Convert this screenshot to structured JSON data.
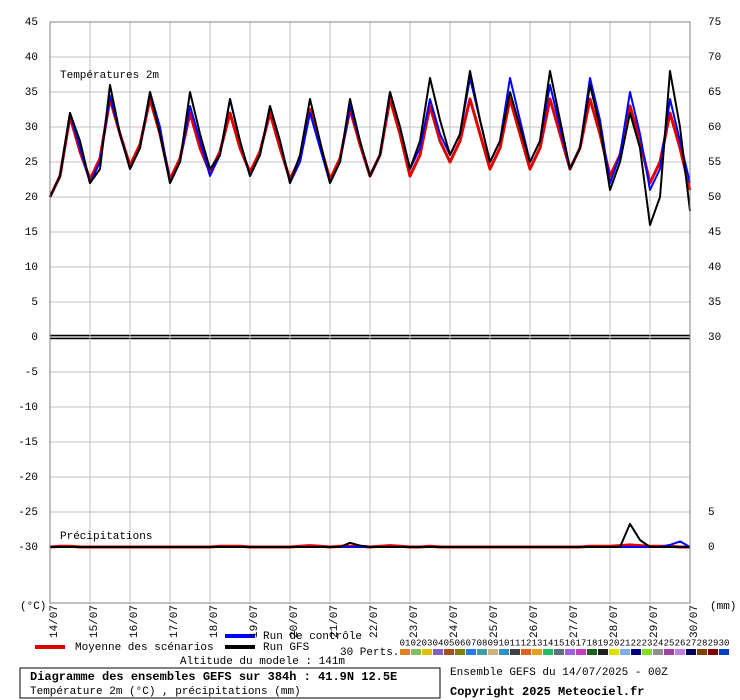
{
  "chart_data": {
    "type": "line",
    "title": "Diagramme des ensembles GEFS sur 384h : 41.9N 12.5E",
    "subtitle": "Température 2m (°C) , précipitations (mm)",
    "run_info": "Ensemble GEFS du 14/07/2025 - 00Z",
    "copyright": "Copyright 2025 Meteociel.fr",
    "altitude": "Altitude du modele : 141m",
    "temp_label": "Températures 2m",
    "precip_label": "Précipitations",
    "y_unit": "(°C)",
    "y2_unit": "(mm)",
    "grid": true,
    "xlim": [
      0,
      384
    ],
    "ylim": [
      -38,
      45
    ],
    "y2lim": [
      -8,
      75
    ],
    "yticks": [
      -30,
      -25,
      -20,
      -15,
      -10,
      -5,
      0,
      5,
      10,
      15,
      20,
      25,
      30,
      35,
      40,
      45
    ],
    "y2ticks": [
      0,
      5,
      30,
      35,
      40,
      45,
      50,
      55,
      60,
      65,
      70,
      75
    ],
    "xticks": [
      {
        "value": 0,
        "label": "14/07"
      },
      {
        "value": 24,
        "label": "15/07"
      },
      {
        "value": 48,
        "label": "16/07"
      },
      {
        "value": 72,
        "label": "17/07"
      },
      {
        "value": 96,
        "label": "18/07"
      },
      {
        "value": 120,
        "label": "19/07"
      },
      {
        "value": 144,
        "label": "20/07"
      },
      {
        "value": 168,
        "label": "21/07"
      },
      {
        "value": 192,
        "label": "22/07"
      },
      {
        "value": 216,
        "label": "23/07"
      },
      {
        "value": 240,
        "label": "24/07"
      },
      {
        "value": 264,
        "label": "25/07"
      },
      {
        "value": 288,
        "label": "26/07"
      },
      {
        "value": 312,
        "label": "27/07"
      },
      {
        "value": 336,
        "label": "28/07"
      },
      {
        "value": 360,
        "label": "29/07"
      },
      {
        "value": 384,
        "label": "30/07"
      }
    ],
    "x": [
      0,
      6,
      12,
      18,
      24,
      30,
      36,
      42,
      48,
      54,
      60,
      66,
      72,
      78,
      84,
      90,
      96,
      102,
      108,
      114,
      120,
      126,
      132,
      138,
      144,
      150,
      156,
      162,
      168,
      174,
      180,
      186,
      192,
      198,
      204,
      210,
      216,
      222,
      228,
      234,
      240,
      246,
      252,
      258,
      264,
      270,
      276,
      282,
      288,
      294,
      300,
      306,
      312,
      318,
      324,
      330,
      336,
      342,
      348,
      354,
      360,
      366,
      372,
      378,
      384
    ],
    "series": [
      {
        "name": "Moyenne des scénarios",
        "color": "#e00000",
        "values": [
          20,
          23,
          31.5,
          26.5,
          22.5,
          25.5,
          34,
          29,
          24.5,
          27.5,
          34,
          29,
          22.5,
          25.5,
          32,
          27,
          23.5,
          26.5,
          32,
          27,
          23.5,
          26.5,
          32,
          27,
          22.5,
          25.5,
          32.5,
          27.5,
          22.5,
          25.5,
          32.5,
          27.5,
          23,
          26,
          34,
          29,
          23,
          26,
          33,
          28,
          25,
          28,
          34,
          29,
          24,
          27,
          34,
          29,
          24,
          27,
          34,
          29,
          24,
          27,
          34,
          29,
          23,
          26,
          33,
          28,
          22,
          25,
          32,
          27,
          21
        ]
      },
      {
        "name": "Run de contrôle",
        "color": "#0000ff",
        "values": [
          20,
          23,
          32,
          27,
          22,
          25,
          34.5,
          29,
          24,
          27,
          35,
          30,
          22,
          25,
          33,
          28,
          23,
          26,
          34,
          28,
          23,
          26,
          33,
          28,
          22,
          25,
          32,
          27,
          22,
          25,
          33,
          28,
          23,
          26,
          35,
          30,
          24,
          27,
          34,
          29,
          26,
          29,
          37,
          31,
          25,
          28,
          37,
          31,
          25,
          28,
          36,
          30,
          24,
          27,
          37,
          31,
          22,
          26,
          35,
          29,
          21,
          24,
          34,
          28,
          22
        ]
      },
      {
        "name": "Run GFS",
        "color": "#000000",
        "values": [
          20,
          23,
          32,
          28,
          22,
          24,
          36,
          29,
          24,
          27,
          35,
          29,
          22,
          25,
          35,
          29,
          24,
          26,
          34,
          28,
          23,
          26,
          33,
          28,
          22,
          26,
          34,
          28,
          22,
          25,
          34,
          28,
          23,
          26,
          35,
          30,
          24,
          28,
          37,
          31,
          26,
          29,
          38,
          31,
          25,
          28,
          35,
          30,
          25,
          28,
          38,
          31,
          24,
          27,
          36,
          30,
          21,
          25,
          32,
          27,
          16,
          20,
          38,
          30,
          18
        ]
      }
    ],
    "precipitation": [
      {
        "color": "#e00000",
        "axis": "y2",
        "values": [
          0,
          0.1,
          0.1,
          0,
          0,
          0,
          0,
          0,
          0,
          0,
          0,
          0,
          0,
          0,
          0,
          0,
          0,
          0.1,
          0.1,
          0.1,
          0,
          0,
          0,
          0,
          0,
          0.1,
          0.2,
          0.1,
          0,
          0.1,
          0.1,
          0.1,
          0,
          0.1,
          0.2,
          0.1,
          0,
          0,
          0.1,
          0,
          0,
          0,
          0,
          0,
          0,
          0,
          0,
          0,
          0,
          0,
          0,
          0,
          0,
          0,
          0.1,
          0.1,
          0.1,
          0.2,
          0.3,
          0.2,
          0.1,
          0.1,
          0.1,
          0,
          0
        ]
      },
      {
        "color": "#0000ff",
        "axis": "y2",
        "values": [
          0,
          0,
          0,
          0,
          0,
          0,
          0,
          0,
          0,
          0,
          0,
          0,
          0,
          0,
          0,
          0,
          0,
          0,
          0,
          0,
          0,
          0,
          0,
          0,
          0,
          0,
          0,
          0,
          0,
          0,
          0,
          0,
          0,
          0,
          0,
          0,
          0,
          0,
          0,
          0,
          0,
          0,
          0,
          0,
          0,
          0,
          0,
          0,
          0,
          0,
          0,
          0,
          0,
          0,
          0,
          0,
          0,
          0,
          0,
          0,
          0,
          0,
          0.3,
          0.8,
          0
        ]
      },
      {
        "color": "#000000",
        "axis": "y2",
        "values": [
          0,
          0,
          0,
          0,
          0,
          0,
          0,
          0,
          0,
          0,
          0,
          0,
          0,
          0,
          0,
          0,
          0,
          0,
          0,
          0,
          0,
          0,
          0,
          0,
          0,
          0,
          0,
          0,
          0,
          0,
          0.6,
          0.2,
          0,
          0,
          0,
          0,
          0,
          0,
          0,
          0,
          0,
          0,
          0,
          0,
          0,
          0,
          0,
          0,
          0,
          0,
          0,
          0,
          0,
          0,
          0,
          0,
          0,
          0,
          3.3,
          1,
          0,
          0,
          0,
          0,
          0
        ]
      }
    ],
    "perturbations": {
      "label": "30 Perts.",
      "names": [
        "01",
        "02",
        "03",
        "04",
        "05",
        "06",
        "07",
        "08",
        "09",
        "10",
        "11",
        "12",
        "13",
        "14",
        "15",
        "16",
        "17",
        "18",
        "19",
        "20",
        "21",
        "22",
        "23",
        "24",
        "25",
        "26",
        "27",
        "28",
        "29",
        "30"
      ],
      "colors": [
        "#e08020",
        "#80c060",
        "#e0c000",
        "#8060c0",
        "#a05020",
        "#808000",
        "#2080e0",
        "#40a0a0",
        "#d0b080",
        "#3090c0",
        "#404040",
        "#e06020",
        "#e0a020",
        "#20c060",
        "#607080",
        "#a060e0",
        "#c040c0",
        "#206020",
        "#202020",
        "#e0e000",
        "#80b0e0",
        "#000080",
        "#80e020",
        "#909090",
        "#a040a0",
        "#c080e0",
        "#000060",
        "#804000",
        "#800000",
        "#0040c0"
      ]
    }
  }
}
